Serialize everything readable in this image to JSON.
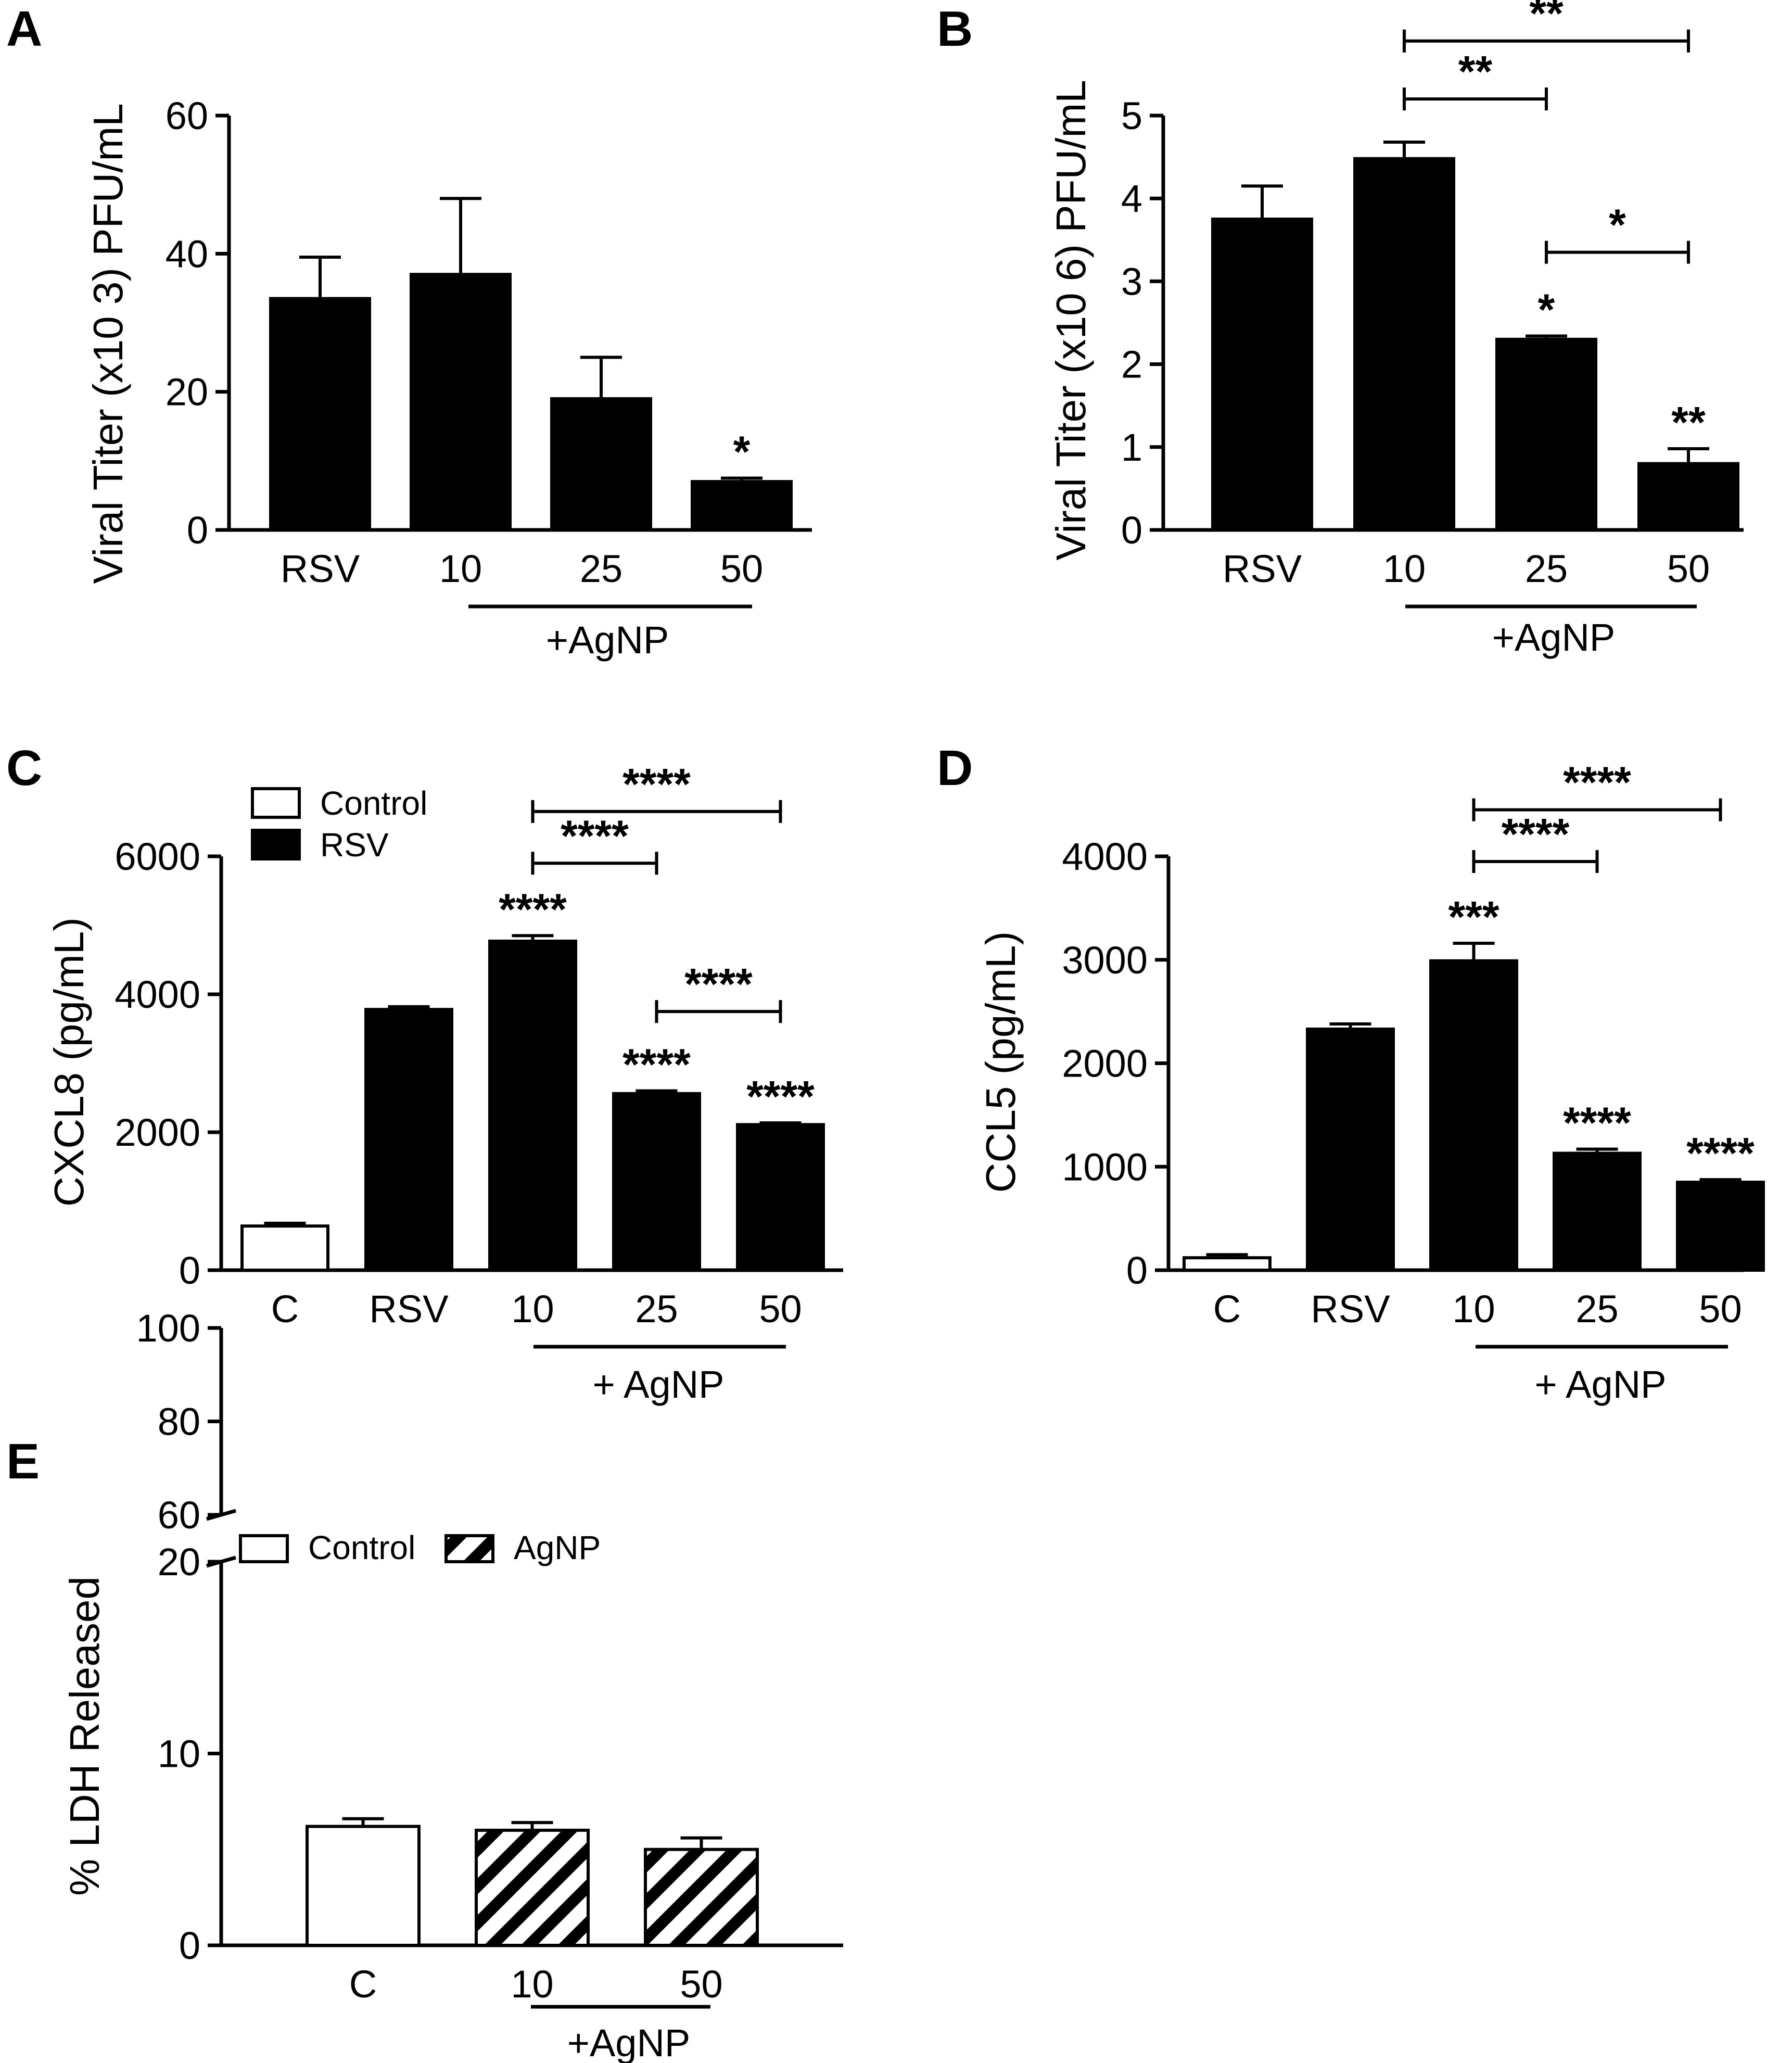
{
  "colors": {
    "black": "#000000",
    "white": "#ffffff"
  },
  "chart_data": [
    {
      "id": "A",
      "panel_label": "A",
      "type": "bar",
      "categories": [
        "RSV",
        "10",
        "25",
        "50"
      ],
      "values": [
        33.5,
        37,
        19,
        7
      ],
      "errors": [
        6,
        11,
        6,
        0.5
      ],
      "ylabel": "Viral Titer (x10 3) PFU/mL",
      "ylim": [
        0,
        60
      ],
      "yticks": [
        0,
        20,
        40,
        60
      ],
      "group_label": "+AgNP",
      "stars": [
        "",
        "",
        "",
        "*"
      ],
      "brackets": []
    },
    {
      "id": "B",
      "panel_label": "B",
      "type": "bar",
      "categories": [
        "RSV",
        "10",
        "25",
        "50"
      ],
      "values": [
        3.75,
        4.48,
        2.3,
        0.8
      ],
      "errors": [
        0.4,
        0.2,
        0.04,
        0.18
      ],
      "ylabel": "Viral Titer (x10 6) PFU/mL",
      "ylim": [
        0,
        5
      ],
      "yticks": [
        0,
        1,
        2,
        3,
        4,
        5
      ],
      "group_label": "+AgNP",
      "stars": [
        "",
        "",
        "*",
        "**"
      ],
      "brackets": [
        {
          "from": 1,
          "to": 3,
          "y": 5.9,
          "label": "**"
        },
        {
          "from": 1,
          "to": 2,
          "y": 5.2,
          "label": "**"
        },
        {
          "from": 2,
          "to": 3,
          "y": 3.35,
          "label": "*"
        }
      ]
    },
    {
      "id": "C",
      "panel_label": "C",
      "type": "bar",
      "categories": [
        "C",
        "RSV",
        "10",
        "25",
        "50"
      ],
      "values": [
        640,
        3780,
        4770,
        2560,
        2110
      ],
      "errors": [
        40,
        40,
        80,
        40,
        25
      ],
      "ylabel": "CXCL8 (pg/mL)",
      "ylim": [
        0,
        6000
      ],
      "yticks": [
        0,
        2000,
        4000,
        6000
      ],
      "group_label": "+ AgNP",
      "fills": [
        "white",
        "black",
        "black",
        "black",
        "black"
      ],
      "stars": [
        "",
        "",
        "****",
        "****",
        "****"
      ],
      "brackets": [
        {
          "from": 2,
          "to": 4,
          "y": 6650,
          "label": "****"
        },
        {
          "from": 2,
          "to": 3,
          "y": 5900,
          "label": "****"
        },
        {
          "from": 3,
          "to": 4,
          "y": 3750,
          "label": "****"
        }
      ],
      "legend": [
        {
          "label": "Control",
          "fill": "white"
        },
        {
          "label": "RSV",
          "fill": "black"
        }
      ]
    },
    {
      "id": "D",
      "panel_label": "D",
      "type": "bar",
      "categories": [
        "C",
        "RSV",
        "10",
        "25",
        "50"
      ],
      "values": [
        120,
        2330,
        2990,
        1130,
        850
      ],
      "errors": [
        30,
        50,
        170,
        40,
        25
      ],
      "ylabel": "CCL5 (pg/mL)",
      "ylim": [
        0,
        4000
      ],
      "yticks": [
        0,
        1000,
        2000,
        3000,
        4000
      ],
      "group_label": "+ AgNP",
      "fills": [
        "white",
        "black",
        "black",
        "black",
        "black"
      ],
      "stars": [
        "",
        "",
        "***",
        "****",
        "****"
      ],
      "brackets": [
        {
          "from": 2,
          "to": 4,
          "y": 4450,
          "label": "****"
        },
        {
          "from": 2,
          "to": 3,
          "y": 3950,
          "label": "****"
        }
      ]
    },
    {
      "id": "E",
      "panel_label": "E",
      "type": "bar",
      "categories": [
        "C",
        "10",
        "50"
      ],
      "values": [
        6.2,
        6.0,
        5.0
      ],
      "errors": [
        0.4,
        0.4,
        0.6
      ],
      "ylabel": "% LDH Released",
      "ylim": [
        0,
        100
      ],
      "yticks_lower": [
        0,
        10,
        20
      ],
      "yticks_upper": [
        60,
        80,
        100
      ],
      "axis_break": [
        20,
        60
      ],
      "group_label": "+AgNP",
      "fills": [
        "white",
        "hatch",
        "hatch"
      ],
      "stars": [
        "",
        "",
        ""
      ],
      "brackets": [],
      "legend": [
        {
          "label": "Control",
          "fill": "white"
        },
        {
          "label": "AgNP",
          "fill": "hatch"
        }
      ]
    }
  ]
}
